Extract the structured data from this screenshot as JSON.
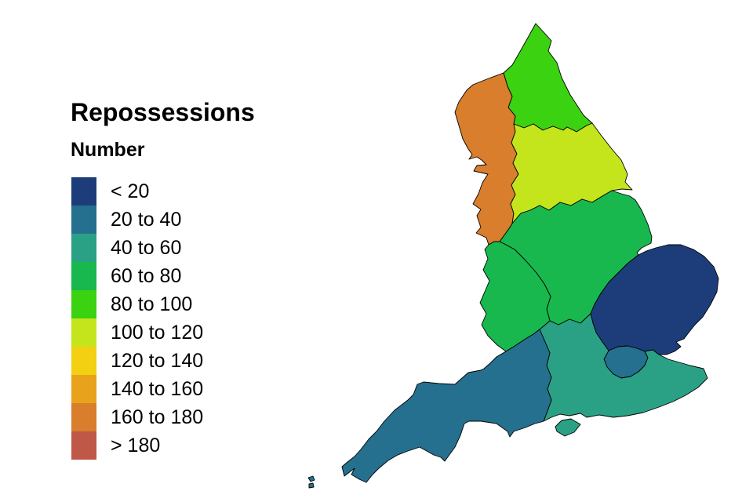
{
  "title": "Repossessions",
  "legend": {
    "title": "Number",
    "items": [
      {
        "label": "< 20",
        "color": "#1d3d7a"
      },
      {
        "label": "20 to 40",
        "color": "#24708e"
      },
      {
        "label": "40 to 60",
        "color": "#2aa185"
      },
      {
        "label": "60 to 80",
        "color": "#18b84e"
      },
      {
        "label": "80 to 100",
        "color": "#3bd211"
      },
      {
        "label": "100 to 120",
        "color": "#c4e51b"
      },
      {
        "label": "120 to 140",
        "color": "#f3d011"
      },
      {
        "label": "140 to 160",
        "color": "#e8a21c"
      },
      {
        "label": "160 to 180",
        "color": "#d87e2c"
      },
      {
        "label": "> 180",
        "color": "#bf5847"
      }
    ]
  },
  "map": {
    "stroke_color": "#000000",
    "regions": [
      {
        "id": "north-east",
        "name": "North East",
        "bin": "80 to 100",
        "bin_index": 4,
        "polygons": [
          "683,30 694,42 703,52 699,65 710,80 716,99 727,121 744,147 755,157 748,160 735,168 723,162 718,166 705,161 692,166 680,158 668,163 655,158 657,148 648,137 653,123 647,110 642,93 653,83 664,64 673,48"
        ]
      },
      {
        "id": "north-west",
        "name": "North West",
        "bin": "160 to 180",
        "bin_index": 8,
        "polygons": [
          "642,93 623,100 603,108 595,115 585,130 580,143 585,160 590,177 597,190 602,197 598,203 608,200 614,204 620,210 608,211 604,218 622,222 615,233 610,247 603,260 613,267 608,275 613,290 607,297 620,303 623,312 630,308 637,308 645,297 650,290 653,285 655,272 651,260 657,248 652,236 661,222 654,208 659,196 652,182 657,168 655,158 657,148 648,137 653,123 647,110"
        ]
      },
      {
        "id": "yorkshire-and-the-humber",
        "name": "Yorkshire and The Humber",
        "bin": "100 to 120",
        "bin_index": 5,
        "polygons": [
          "655,158 668,163 680,158 692,166 705,161 718,166 723,162 735,168 748,160 755,157 766,172 780,190 792,204 800,222 797,232 806,242 793,241 780,243 768,250 755,258 742,254 728,262 714,258 700,268 688,262 676,268 664,272 653,285 655,272 651,260 657,248 652,236 661,222 654,208 659,196 652,182 657,168"
        ]
      },
      {
        "id": "east-midlands",
        "name": "East Midlands",
        "bin": "60 to 80",
        "bin_index": 3,
        "polygons": [
          "653,285 664,272 676,268 688,262 700,268 714,258 728,262 742,254 755,258 768,250 780,243 792,247 803,250 810,255 818,268 826,286 831,302 830,310 818,316 812,322 814,325 800,336 788,348 776,360 766,374 758,388 753,400 740,412 726,407 712,414 701,409 697,394 702,378 694,362 684,348 670,332 656,318 645,312 637,308 645,297 650,290"
        ]
      },
      {
        "id": "west-midlands",
        "name": "West Midlands",
        "bin": "60 to 80",
        "bin_index": 3,
        "polygons": [
          "637,308 630,308 623,312 618,318 622,330 616,344 624,358 618,372 612,386 620,400 614,414 622,428 634,440 645,448 658,440 670,432 680,426 688,420 694,415 701,409 697,394 702,378 694,362 684,348 670,332 656,318 645,312"
        ]
      },
      {
        "id": "east-of-england",
        "name": "East of England",
        "bin": "< 20",
        "bin_index": 0,
        "polygons": [
          "814,325 824,320 836,316 852,312 868,312 884,318 898,327 910,340 916,355 914,372 906,388 896,404 886,414 878,424 872,432 862,436 868,442 860,448 850,452 840,452 832,446 822,448 812,444 800,441 788,442 776,447 768,436 760,424 756,412 753,400 758,388 766,374 776,360 788,348 800,336"
        ]
      },
      {
        "id": "london",
        "name": "London",
        "bin": "20 to 40",
        "bin_index": 1,
        "polygons": [
          "776,447 788,442 800,441 812,444 822,448 826,456 822,466 814,474 804,480 792,482 782,477 774,468 770,458"
        ]
      },
      {
        "id": "south-east",
        "name": "South East",
        "bin": "40 to 60",
        "bin_index": 2,
        "polygons": [
          "753,400 756,412 760,424 768,436 776,447 770,458 774,468 782,477 792,482 804,480 814,474 822,466 826,456 822,448 832,446 840,452 852,458 866,462 880,466 897,470 902,482 890,494 874,504 858,512 840,519 820,526 800,530 782,532 764,529 748,532 740,527 726,530 714,528 703,532 693,537 698,524 703,510 698,496 703,481 697,466 701,450 695,436 688,420 694,415 701,409 712,414 726,407 740,412",
          "708,544 716,536 728,534 740,541 732,551 720,556 710,550"
        ]
      },
      {
        "id": "south-west",
        "name": "South West",
        "bin": "20 to 40",
        "bin_index": 1,
        "polygons": [
          "645,448 658,440 670,432 680,426 688,420 695,436 701,450 697,466 703,481 698,496 703,510 698,524 693,537 690,538 682,540 670,545 655,550 650,557 647,550 633,540 613,537 598,537 592,540 587,555 580,570 567,588 562,583 553,580 535,570 520,575 507,580 495,587 483,597 475,605 467,615 458,611 448,605 452,597 439,607 436,595 443,589 452,582 460,573 470,560 480,550 490,537 503,523 520,510 527,503 532,490 540,487 560,489 580,490 597,475 613,472 617,470 625,463 633,455",
          "393,609 399,607 401,612 396,614",
          "394,617 399,616 400,621 394,622"
        ]
      }
    ]
  },
  "chart_data": {
    "type": "choropleth",
    "title": "Repossessions",
    "legend_title": "Number",
    "bins": [
      "< 20",
      "20 to 40",
      "40 to 60",
      "60 to 80",
      "80 to 100",
      "100 to 120",
      "120 to 140",
      "140 to 160",
      "160 to 180",
      "> 180"
    ],
    "regions": [
      {
        "name": "North East",
        "bin": "80 to 100"
      },
      {
        "name": "North West",
        "bin": "160 to 180"
      },
      {
        "name": "Yorkshire and The Humber",
        "bin": "100 to 120"
      },
      {
        "name": "East Midlands",
        "bin": "60 to 80"
      },
      {
        "name": "West Midlands",
        "bin": "60 to 80"
      },
      {
        "name": "East of England",
        "bin": "< 20"
      },
      {
        "name": "London",
        "bin": "20 to 40"
      },
      {
        "name": "South East",
        "bin": "40 to 60"
      },
      {
        "name": "South West",
        "bin": "20 to 40"
      }
    ]
  }
}
